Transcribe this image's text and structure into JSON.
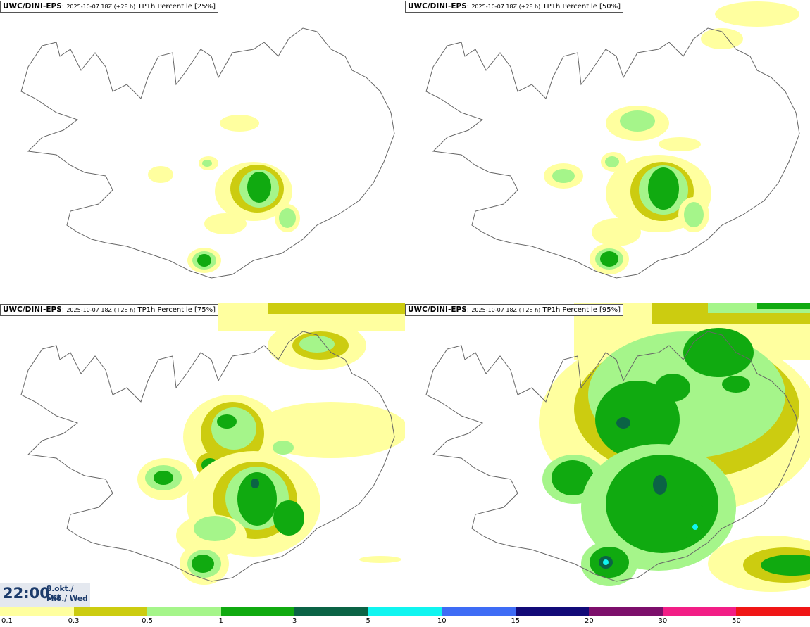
{
  "panels": [
    {
      "source": "UWC/DINI-EPS",
      "run": "2025-10-07 18Z (+28 h)",
      "label": "TP1h Percentile [25%]"
    },
    {
      "source": "UWC/DINI-EPS",
      "run": "2025-10-07 18Z (+28 h)",
      "label": "TP1h Percentile [50%]"
    },
    {
      "source": "UWC/DINI-EPS",
      "run": "2025-10-07 18Z (+28 h)",
      "label": "TP1h Percentile [75%]"
    },
    {
      "source": "UWC/DINI-EPS",
      "run": "2025-10-07 18Z (+28 h)",
      "label": "TP1h Percentile [95%]"
    }
  ],
  "time": {
    "clock": "22:00",
    "date": "8.okt./ Oct",
    "weekday": "Mið./ Wed"
  },
  "colorbar": {
    "colors": [
      "#ffff9f",
      "#cccc10",
      "#a5f58a",
      "#10aa10",
      "#0b6345",
      "#10f5f0",
      "#3e6cf5",
      "#120a78",
      "#7c0f6b",
      "#f21e86",
      "#f01616"
    ],
    "labels": [
      "0.1",
      "0.3",
      "0.5",
      "1",
      "3",
      "5",
      "10",
      "15",
      "20",
      "30",
      "50"
    ]
  }
}
